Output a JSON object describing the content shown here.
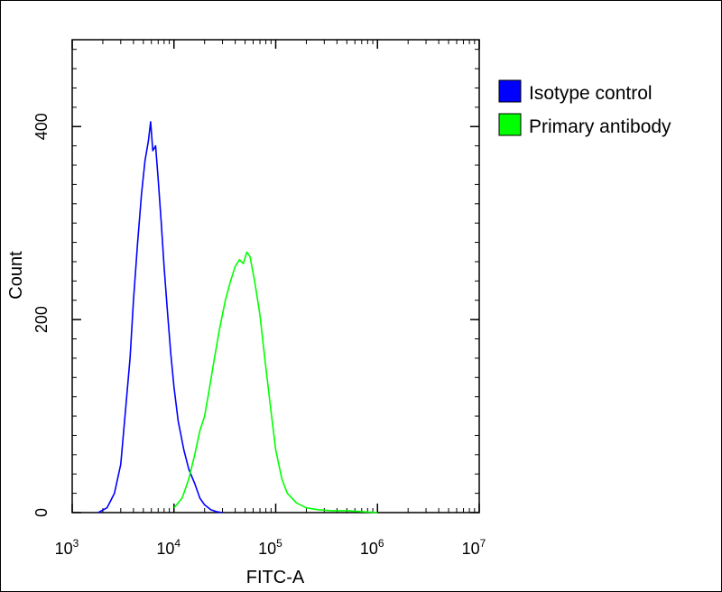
{
  "chart_data": {
    "type": "line",
    "xlabel": "FITC-A",
    "ylabel": "Count",
    "xscale": "log",
    "xlim": [
      1000,
      10000000
    ],
    "ylim": [
      0,
      490
    ],
    "x_ticks": [
      {
        "value": 1000,
        "base": "10",
        "exp": "3"
      },
      {
        "value": 10000,
        "base": "10",
        "exp": "4"
      },
      {
        "value": 100000,
        "base": "10",
        "exp": "5"
      },
      {
        "value": 1000000,
        "base": "10",
        "exp": "6"
      },
      {
        "value": 10000000,
        "base": "10",
        "exp": "7"
      }
    ],
    "y_ticks": [
      {
        "value": 0,
        "label": "0"
      },
      {
        "value": 200,
        "label": "200"
      },
      {
        "value": 400,
        "label": "400"
      }
    ],
    "legend_position": "top-right",
    "series": [
      {
        "name": "Isotype control",
        "color": "#0000ff",
        "x": [
          1800,
          2200,
          2600,
          3000,
          3300,
          3700,
          4000,
          4400,
          4800,
          5200,
          5600,
          5900,
          6200,
          6600,
          7000,
          7500,
          8000,
          8600,
          9300,
          10000,
          11000,
          12500,
          14000,
          16000,
          18000,
          20000,
          23000,
          26000,
          30000
        ],
        "values": [
          0,
          5,
          20,
          50,
          100,
          160,
          220,
          280,
          330,
          365,
          385,
          405,
          375,
          380,
          345,
          300,
          255,
          210,
          165,
          130,
          95,
          65,
          45,
          30,
          15,
          8,
          3,
          1,
          0
        ]
      },
      {
        "name": "Primary antibody",
        "color": "#00ff00",
        "x": [
          10000,
          11000,
          12000,
          13000,
          14000,
          16000,
          18000,
          20000,
          22000,
          25000,
          28000,
          32000,
          36000,
          40000,
          44000,
          48000,
          52000,
          56000,
          62000,
          70000,
          80000,
          90000,
          100000,
          115000,
          130000,
          160000,
          200000,
          260000,
          350000,
          500000,
          700000,
          1000000
        ],
        "values": [
          5,
          10,
          15,
          25,
          35,
          60,
          85,
          100,
          125,
          160,
          190,
          220,
          240,
          255,
          262,
          258,
          270,
          265,
          240,
          205,
          150,
          105,
          65,
          35,
          20,
          10,
          5,
          3,
          2,
          2,
          1,
          0
        ]
      }
    ]
  }
}
